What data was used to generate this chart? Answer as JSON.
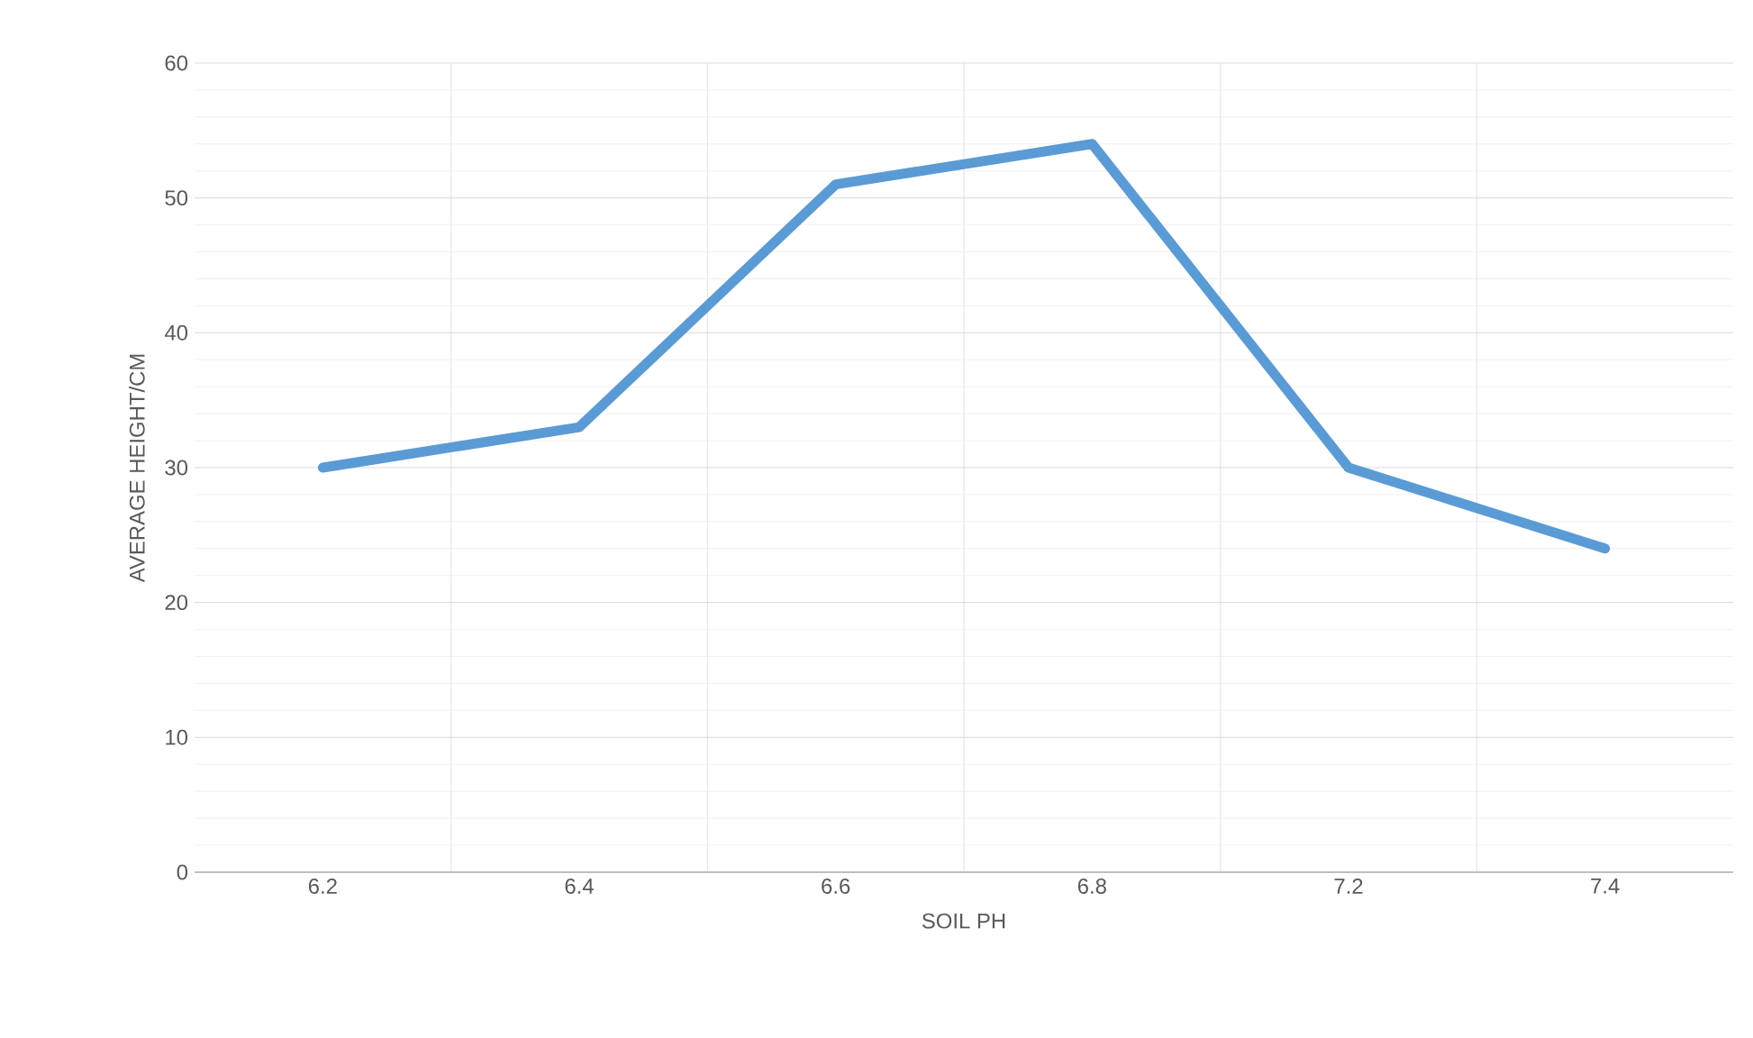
{
  "chart_data": {
    "type": "line",
    "xlabel": "SOIL PH",
    "ylabel": "AVERAGE HEIGHT/CM",
    "categories": [
      "6.2",
      "6.4",
      "6.6",
      "6.8",
      "7.2",
      "7.4"
    ],
    "series": [
      {
        "color": "#5b9bd5",
        "values": [
          30,
          33,
          51,
          54,
          30,
          24
        ]
      }
    ],
    "ylim": [
      0,
      60
    ],
    "yticks": [
      0,
      10,
      20,
      30,
      40,
      50,
      60
    ],
    "grid": true,
    "marker": "none",
    "line_style": "solid"
  }
}
